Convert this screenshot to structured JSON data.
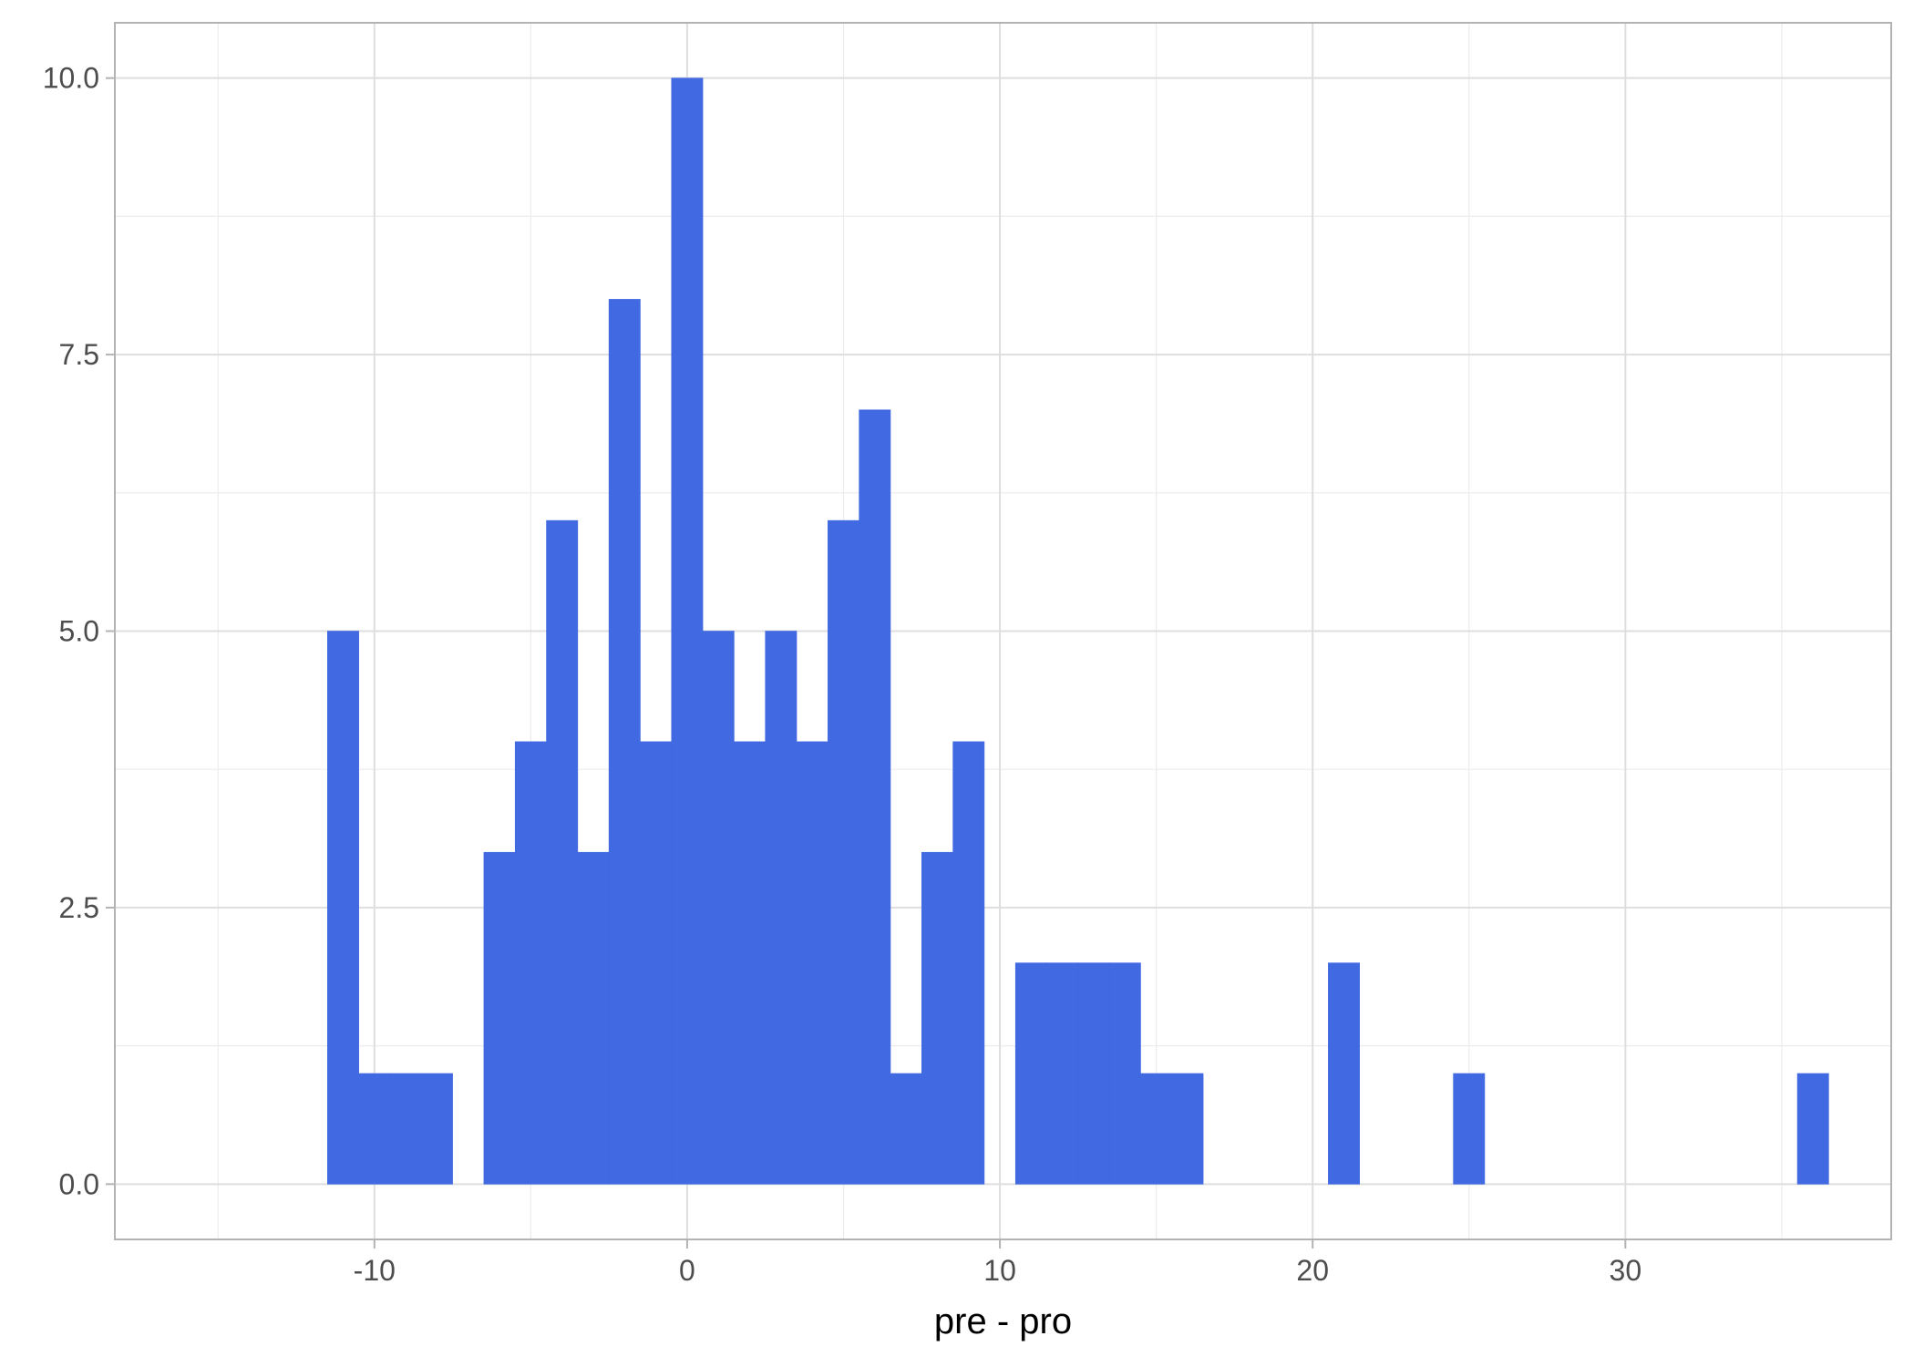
{
  "chart_data": {
    "type": "bar",
    "subtype": "histogram",
    "title": "",
    "xlabel": "pre - pro",
    "ylabel": "",
    "bin_width": 1,
    "xlim": [
      -18.3,
      38.5
    ],
    "ylim": [
      -0.5,
      10.5
    ],
    "x_ticks": [
      -10,
      0,
      10,
      20,
      30
    ],
    "x_tick_labels": [
      "-10",
      "0",
      "10",
      "20",
      "30"
    ],
    "y_ticks": [
      0,
      2.5,
      5,
      7.5,
      10
    ],
    "y_tick_labels": [
      "0.0",
      "2.5",
      "5.0",
      "7.5",
      "10.0"
    ],
    "grid": true,
    "legend": "none",
    "bins": [
      {
        "x": -11,
        "count": 5
      },
      {
        "x": -10,
        "count": 1
      },
      {
        "x": -9,
        "count": 1
      },
      {
        "x": -8,
        "count": 1
      },
      {
        "x": -6,
        "count": 3
      },
      {
        "x": -5,
        "count": 4
      },
      {
        "x": -4,
        "count": 6
      },
      {
        "x": -3,
        "count": 3
      },
      {
        "x": -2,
        "count": 8
      },
      {
        "x": -1,
        "count": 4
      },
      {
        "x": 0,
        "count": 10
      },
      {
        "x": 1,
        "count": 5
      },
      {
        "x": 2,
        "count": 4
      },
      {
        "x": 3,
        "count": 5
      },
      {
        "x": 4,
        "count": 4
      },
      {
        "x": 5,
        "count": 6
      },
      {
        "x": 6,
        "count": 7
      },
      {
        "x": 7,
        "count": 1
      },
      {
        "x": 8,
        "count": 3
      },
      {
        "x": 9,
        "count": 4
      },
      {
        "x": 11,
        "count": 2
      },
      {
        "x": 12,
        "count": 2
      },
      {
        "x": 13,
        "count": 2
      },
      {
        "x": 14,
        "count": 2
      },
      {
        "x": 15,
        "count": 1
      },
      {
        "x": 16,
        "count": 1
      },
      {
        "x": 21,
        "count": 2
      },
      {
        "x": 25,
        "count": 1
      },
      {
        "x": 36,
        "count": 1
      }
    ],
    "colors": {
      "bar": "#4169e1",
      "grid_major": "#dedede",
      "grid_minor": "#ececec",
      "panel_border": "#b3b3b3",
      "background": "#ffffff"
    }
  }
}
